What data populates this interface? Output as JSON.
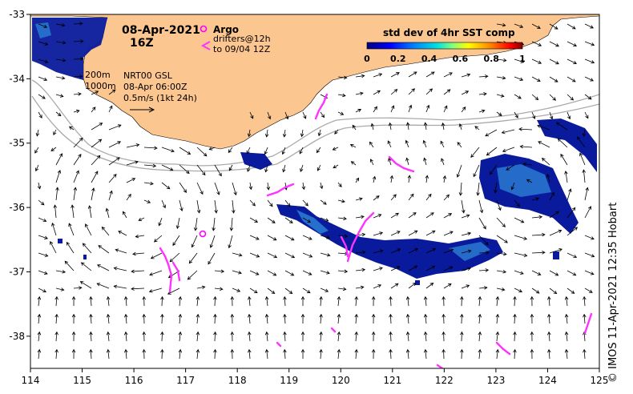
{
  "map": {
    "date": "08-Apr-2021",
    "time": "16Z",
    "lon_ticks": [
      "114",
      "115",
      "116",
      "117",
      "118",
      "119",
      "120",
      "121",
      "122",
      "123",
      "124",
      "125"
    ],
    "lat_ticks": [
      "-33",
      "-34",
      "-35",
      "-36",
      "-37",
      "-38"
    ],
    "lon_range": [
      114,
      125
    ],
    "lat_range": [
      -33,
      -38.5
    ],
    "depth_legend": [
      "200m",
      "1000m"
    ],
    "product": "NRT00 GSL",
    "product_time": "08-Apr 06:00Z",
    "scale_text": "0.5m/s (1kt 24h)",
    "argo_label": "Argo",
    "drifter_label": "drifters@12h",
    "drifter_to": "to 09/04 12Z",
    "colorbar": {
      "title": "std dev of 4hr SST comp",
      "ticks": [
        "0",
        "0.2",
        "0.4",
        "0.6",
        "0.8",
        "1"
      ],
      "range": [
        0,
        1
      ]
    },
    "credit": "© IMOS 11-Apr-2021 12:35 Hobart",
    "colors": {
      "land": "#fcc690",
      "argo": "#ff00ff",
      "drifter": "#ff33ff",
      "high_var": "#0a1a9c",
      "mid_var": "#2a7fd6",
      "contour": "#aaaaaa"
    }
  }
}
